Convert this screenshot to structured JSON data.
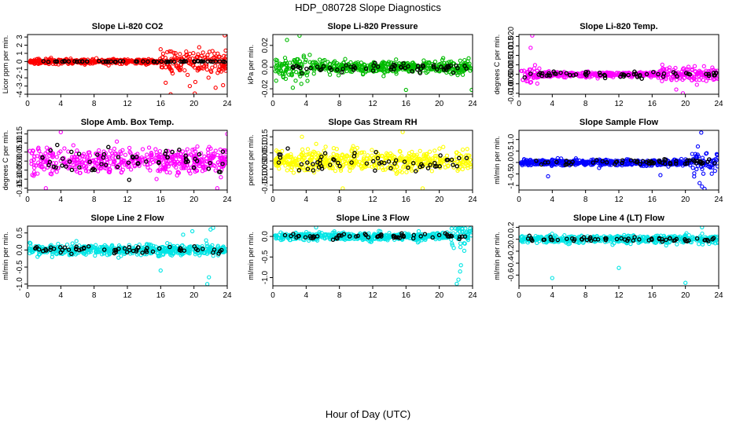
{
  "figure": {
    "title": "HDP_080728  Slope Diagnostics",
    "xlabel": "Hour of Day (UTC)"
  },
  "chart_data": [
    {
      "type": "scatter",
      "title": "Slope Li-820 CO2",
      "ylabel": "Licor ppm per min.",
      "color": "#ff0000",
      "xlim": [
        0,
        24
      ],
      "ylim": [
        -4,
        3.3
      ],
      "xticks": [
        "0",
        "4",
        "8",
        "12",
        "16",
        "20",
        "24"
      ],
      "yticks": [
        -4,
        -3,
        -2,
        -1,
        0,
        1,
        2,
        3
      ],
      "ytick_labels": [
        "-4",
        "-3",
        "-2",
        "-1",
        "0",
        "1",
        "2",
        "3"
      ],
      "spread": 0.25,
      "late_spread": 1.3,
      "late_start": 16,
      "highlight": 0.05,
      "outliers": [
        [
          16.6,
          -2.6
        ],
        [
          17.2,
          -4.0
        ],
        [
          20.1,
          -3.9
        ],
        [
          22.6,
          -3.2
        ],
        [
          23.7,
          3.2
        ],
        [
          23.5,
          -2.9
        ],
        [
          19.5,
          -3.0
        ]
      ]
    },
    {
      "type": "scatter",
      "title": "Slope Li-820 Pressure",
      "ylabel": "kPa per min.",
      "color": "#00bb00",
      "xlim": [
        0,
        24
      ],
      "ylim": [
        -0.025,
        0.03
      ],
      "xticks": [
        "0",
        "4",
        "8",
        "12",
        "16",
        "20",
        "24"
      ],
      "yticks": [
        -0.02,
        0,
        0.02
      ],
      "ytick_labels": [
        "-0.02",
        "0.00",
        "0.02"
      ],
      "spread": 0.005,
      "early_spread": 0.012,
      "early_end": 4.5,
      "late_spread": 0.007,
      "late_start": 20,
      "highlight": 0.004,
      "outliers": [
        [
          1.7,
          0.025
        ],
        [
          3.2,
          0.029
        ],
        [
          16.0,
          -0.021
        ],
        [
          23.9,
          -0.021
        ],
        [
          2.4,
          -0.019
        ]
      ]
    },
    {
      "type": "scatter",
      "title": "Slope Li-820 Temp.",
      "ylabel": "degrees C per min.",
      "color": "#ff00ff",
      "xlim": [
        0,
        24
      ],
      "ylim": [
        -0.0105,
        0.021
      ],
      "xticks": [
        "0",
        "4",
        "8",
        "12",
        "16",
        "20",
        "24"
      ],
      "yticks": [
        -0.01,
        -0.005,
        0,
        0.005,
        0.01,
        0.015,
        0.02
      ],
      "ytick_labels": [
        "-0.010",
        "-0.005",
        "0.000",
        "0.005",
        "0.010",
        "0.015",
        "0.020"
      ],
      "spread": 0.0012,
      "early_spread": 0.004,
      "early_end": 2.5,
      "late_spread": 0.0035,
      "late_start": 17,
      "highlight": 0.0015,
      "outliers": [
        [
          1.6,
          0.0205
        ],
        [
          1.4,
          0.014
        ],
        [
          19.7,
          -0.01
        ],
        [
          18.9,
          -0.008
        ]
      ]
    },
    {
      "type": "scatter",
      "title": "Slope Amb. Box Temp.",
      "ylabel": "degrees C per min.",
      "color": "#ff00ff",
      "xlim": [
        0,
        24
      ],
      "ylim": [
        -0.16,
        0.17
      ],
      "xticks": [
        "0",
        "4",
        "8",
        "12",
        "16",
        "20",
        "24"
      ],
      "yticks": [
        -0.15,
        -0.1,
        -0.05,
        0,
        0.05,
        0.1,
        0.15
      ],
      "ytick_labels": [
        "-0.15",
        "-0.10",
        "-0.05",
        "0.00",
        "0.05",
        "0.10",
        "0.15"
      ],
      "spread": 0.06,
      "highlight": 0.06,
      "outliers": [
        [
          4.0,
          0.16
        ],
        [
          2.2,
          -0.15
        ],
        [
          22.8,
          -0.15
        ],
        [
          24.0,
          0.15
        ]
      ]
    },
    {
      "type": "scatter",
      "title": "Slope Gas Stream RH",
      "ylabel": "percent per min.",
      "color": "#ffff00",
      "xlim": [
        0,
        24
      ],
      "ylim": [
        -0.18,
        0.19
      ],
      "xticks": [
        "0",
        "4",
        "8",
        "12",
        "16",
        "20",
        "24"
      ],
      "yticks": [
        -0.15,
        -0.1,
        -0.05,
        0,
        0.05,
        0.1,
        0.15
      ],
      "ytick_labels": [
        "-0.15",
        "-0.10",
        "-0.05",
        "0.00",
        "0.05",
        "0.10",
        "0.15"
      ],
      "spread": 0.06,
      "highlight": 0.06,
      "outliers": [
        [
          15.6,
          0.18
        ],
        [
          3.5,
          0.15
        ],
        [
          18.0,
          -0.17
        ],
        [
          8.4,
          -0.17
        ]
      ]
    },
    {
      "type": "scatter",
      "title": "Slope Sample Flow",
      "ylabel": "ml/min per min.",
      "color": "#0000ff",
      "xlim": [
        0,
        24
      ],
      "ylim": [
        -1.2,
        1.4
      ],
      "xticks": [
        "0",
        "4",
        "8",
        "12",
        "16",
        "20",
        "24"
      ],
      "yticks": [
        -1,
        -0.5,
        0,
        0.5,
        1
      ],
      "ytick_labels": [
        "-1",
        "-0.5",
        "0.0",
        "0.5",
        "1.0"
      ],
      "spread": 0.12,
      "late_spread": 0.4,
      "late_start": 20.5,
      "highlight": 0.1,
      "outliers": [
        [
          21.9,
          1.3
        ],
        [
          22.0,
          -1.05
        ],
        [
          22.3,
          -1.15
        ],
        [
          21.5,
          0.7
        ],
        [
          3.5,
          -0.6
        ],
        [
          17.0,
          -0.55
        ],
        [
          21.7,
          -0.9
        ]
      ]
    },
    {
      "type": "scatter",
      "title": "Slope Line 2 Flow",
      "ylabel": "ml/min per min.",
      "color": "#00e5e5",
      "xlim": [
        0,
        24
      ],
      "ylim": [
        -1.05,
        0.7
      ],
      "xticks": [
        "0",
        "4",
        "8",
        "12",
        "16",
        "20",
        "24"
      ],
      "yticks": [
        -1,
        -0.5,
        0,
        0.5
      ],
      "ytick_labels": [
        "-1.0",
        "-0.5",
        "0.0",
        "0.5"
      ],
      "spread": 0.13,
      "highlight": 0.08,
      "outliers": [
        [
          21.8,
          -0.8
        ],
        [
          21.6,
          -1.0
        ],
        [
          16.0,
          -0.6
        ],
        [
          22.0,
          0.6
        ],
        [
          22.3,
          0.65
        ],
        [
          19.8,
          0.55
        ],
        [
          18.7,
          0.45
        ]
      ]
    },
    {
      "type": "scatter",
      "title": "Slope Line 3 Flow",
      "ylabel": "ml/min per min.",
      "color": "#00e5e5",
      "xlim": [
        0,
        24
      ],
      "ylim": [
        -1.2,
        0.25
      ],
      "xticks": [
        "0",
        "4",
        "8",
        "12",
        "16",
        "20",
        "24"
      ],
      "yticks": [
        -1,
        -0.5,
        0
      ],
      "ytick_labels": [
        "-1.0",
        "-0.5",
        "0.0"
      ],
      "spread": 0.08,
      "late_spread": 0.25,
      "late_start": 21,
      "highlight": 0.06,
      "outliers": [
        [
          22.1,
          -1.15
        ],
        [
          22.3,
          -1.05
        ],
        [
          22.5,
          -0.85
        ],
        [
          22.6,
          -0.7
        ],
        [
          22.4,
          0.2
        ],
        [
          5.2,
          0.22
        ],
        [
          23.0,
          -0.35
        ]
      ]
    },
    {
      "type": "scatter",
      "title": "Slope Line 4 (LT) Flow",
      "ylabel": "ml/min per min.",
      "color": "#00e5e5",
      "xlim": [
        0,
        24
      ],
      "ylim": [
        -0.78,
        0.22
      ],
      "xticks": [
        "0",
        "4",
        "8",
        "12",
        "16",
        "20",
        "24"
      ],
      "yticks": [
        -0.6,
        -0.4,
        -0.2,
        0,
        0.2
      ],
      "ytick_labels": [
        "-0.6",
        "-0.4",
        "-0.2",
        "0.0",
        "0.2"
      ],
      "spread": 0.06,
      "highlight": 0.04,
      "outliers": [
        [
          4.0,
          -0.65
        ],
        [
          12.0,
          -0.48
        ],
        [
          20.0,
          -0.73
        ],
        [
          22.0,
          0.2
        ]
      ]
    }
  ]
}
